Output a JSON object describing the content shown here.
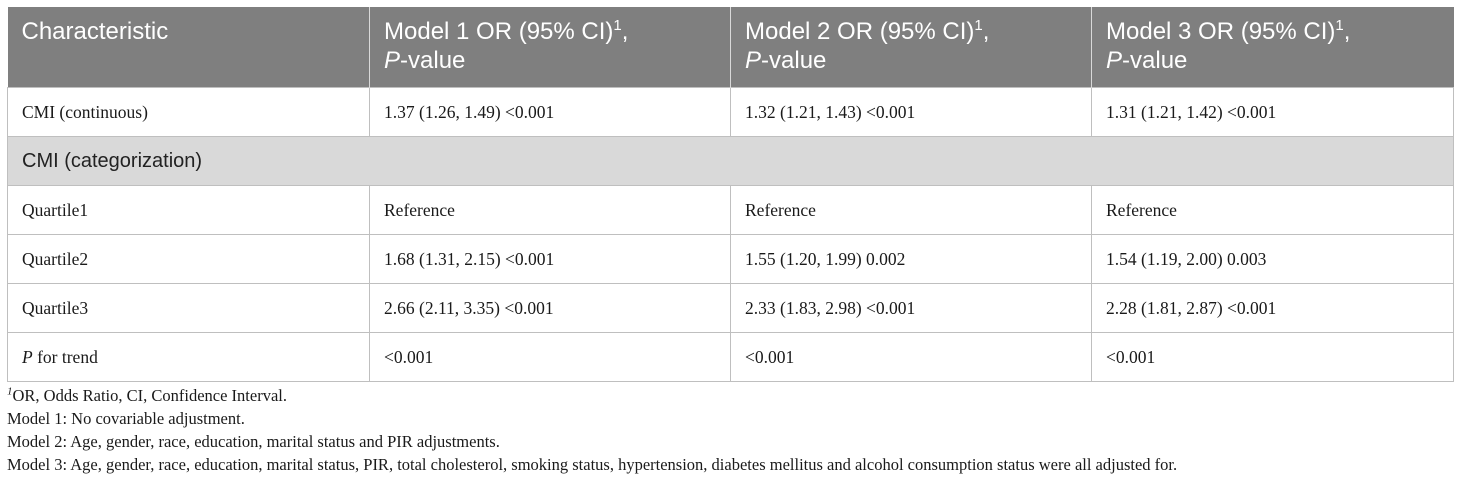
{
  "table": {
    "header": {
      "col1": "Characteristic",
      "col2_main": "Model 1 OR (95% CI)",
      "col3_main": "Model 2 OR (95% CI)",
      "col4_main": "Model 3 OR (95% CI)",
      "sup_mark": "1",
      "comma": ",",
      "p_letter": "P",
      "p_suffix": "-value"
    },
    "rows": [
      {
        "label": "CMI (continuous)",
        "m1": "1.37 (1.26, 1.49) <0.001",
        "m2": "1.32 (1.21, 1.43) <0.001",
        "m3": "1.31 (1.21, 1.42) <0.001"
      },
      {
        "section": "CMI (categorization)"
      },
      {
        "label": "Quartile1",
        "m1": "Reference",
        "m2": "Reference",
        "m3": "Reference"
      },
      {
        "label": "Quartile2",
        "m1": "1.68 (1.31, 2.15) <0.001",
        "m2": "1.55 (1.20, 1.99) 0.002",
        "m3": "1.54 (1.19, 2.00) 0.003"
      },
      {
        "label": "Quartile3",
        "m1": "2.66 (2.11, 3.35) <0.001",
        "m2": "2.33 (1.83, 2.98) <0.001",
        "m3": "2.28 (1.81, 2.87) <0.001"
      },
      {
        "label_italic": "P",
        "label_rest": " for trend",
        "m1": "<0.001",
        "m2": "<0.001",
        "m3": "<0.001"
      }
    ]
  },
  "footnotes": {
    "note1_mark": "1",
    "note1_text": "OR, Odds Ratio, CI, Confidence Interval.",
    "model1": "Model 1: No covariable adjustment.",
    "model2": "Model 2: Age, gender, race, education, marital status and PIR adjustments.",
    "model3": "Model 3: Age, gender, race, education, marital status, PIR, total cholesterol, smoking status, hypertension, diabetes mellitus and alcohol consumption status were all adjusted for."
  }
}
